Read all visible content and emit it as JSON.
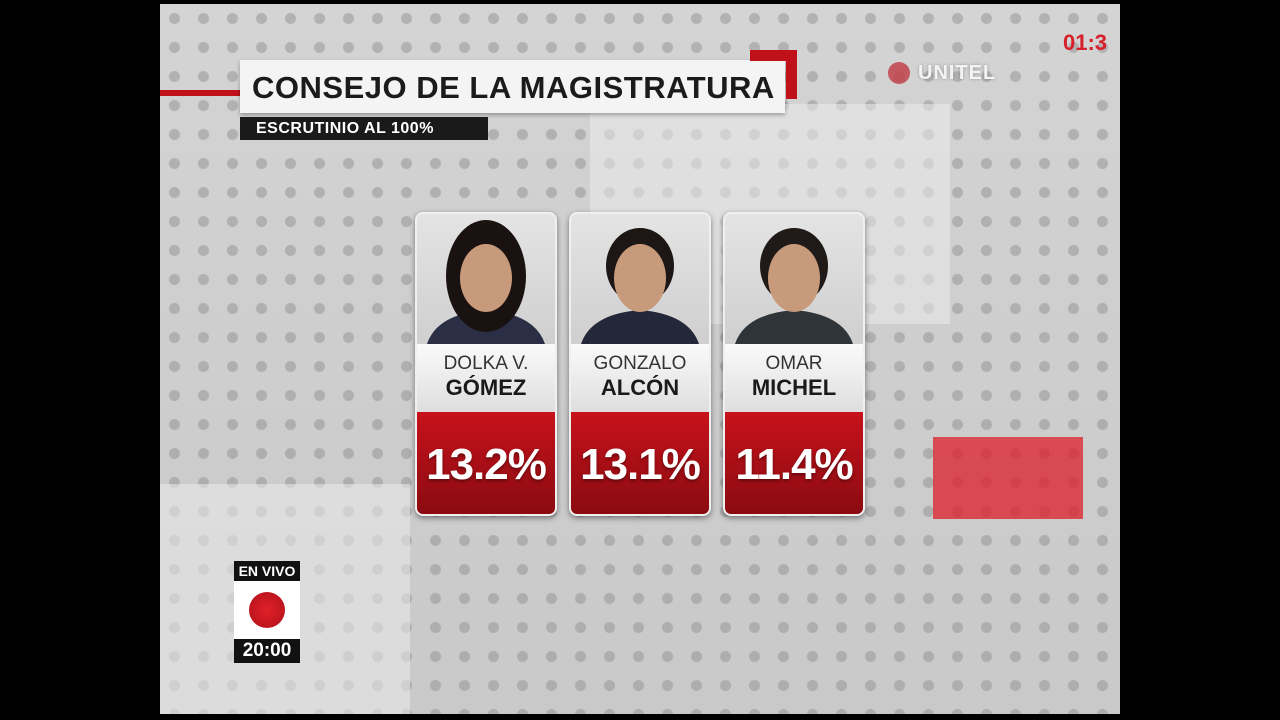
{
  "header": {
    "title": "CONSEJO DE LA MAGISTRATURA",
    "subtitle": "ESCRUTINIO AL 100%"
  },
  "channel": {
    "logo": "UNITEL",
    "clock": "01:3"
  },
  "candidates": [
    {
      "first_name": "DOLKA V.",
      "last_name": "GÓMEZ",
      "percent": "13.2%"
    },
    {
      "first_name": "GONZALO",
      "last_name": "ALCÓN",
      "percent": "13.1%"
    },
    {
      "first_name": "OMAR",
      "last_name": "MICHEL",
      "percent": "11.4%"
    }
  ],
  "live": {
    "label": "EN VIVO",
    "time": "20:00"
  }
}
